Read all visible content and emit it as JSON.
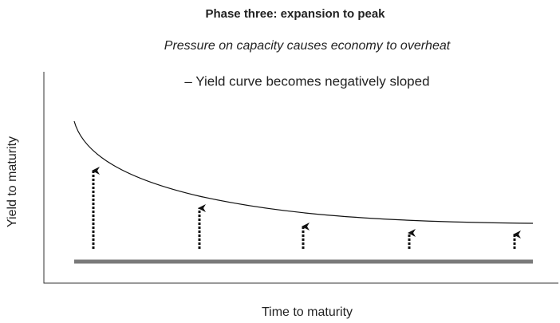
{
  "title": "Phase three: expansion to peak",
  "subtitle": "Pressure on capacity causes economy to overheat",
  "annotation": "– Yield curve becomes negatively sloped",
  "y_axis_label": "Yield to maturity",
  "x_axis_label": "Time to maturity"
}
